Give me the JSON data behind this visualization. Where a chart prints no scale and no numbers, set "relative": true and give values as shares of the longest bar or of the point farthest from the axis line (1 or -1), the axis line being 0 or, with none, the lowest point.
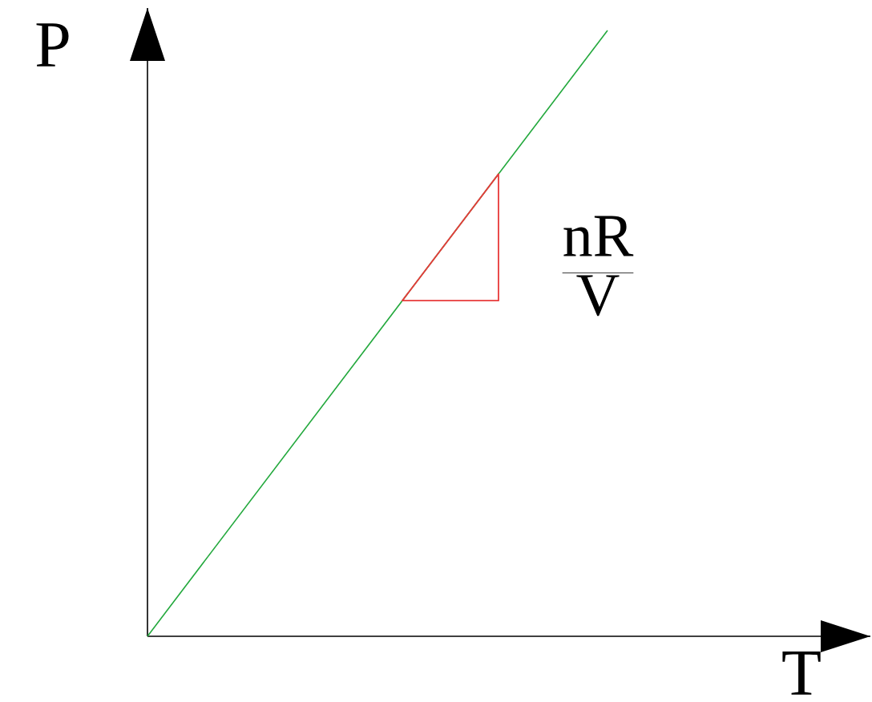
{
  "chart_data": {
    "type": "line",
    "xlabel": "T",
    "ylabel": "P",
    "categories": [
      null,
      null
    ],
    "values": [
      0,
      1
    ],
    "color": "#22a83c",
    "relative": true,
    "annotations": [
      "\\frac{\\mathrm{nR}}{\\mathrm{V}}"
    ]
  }
}
